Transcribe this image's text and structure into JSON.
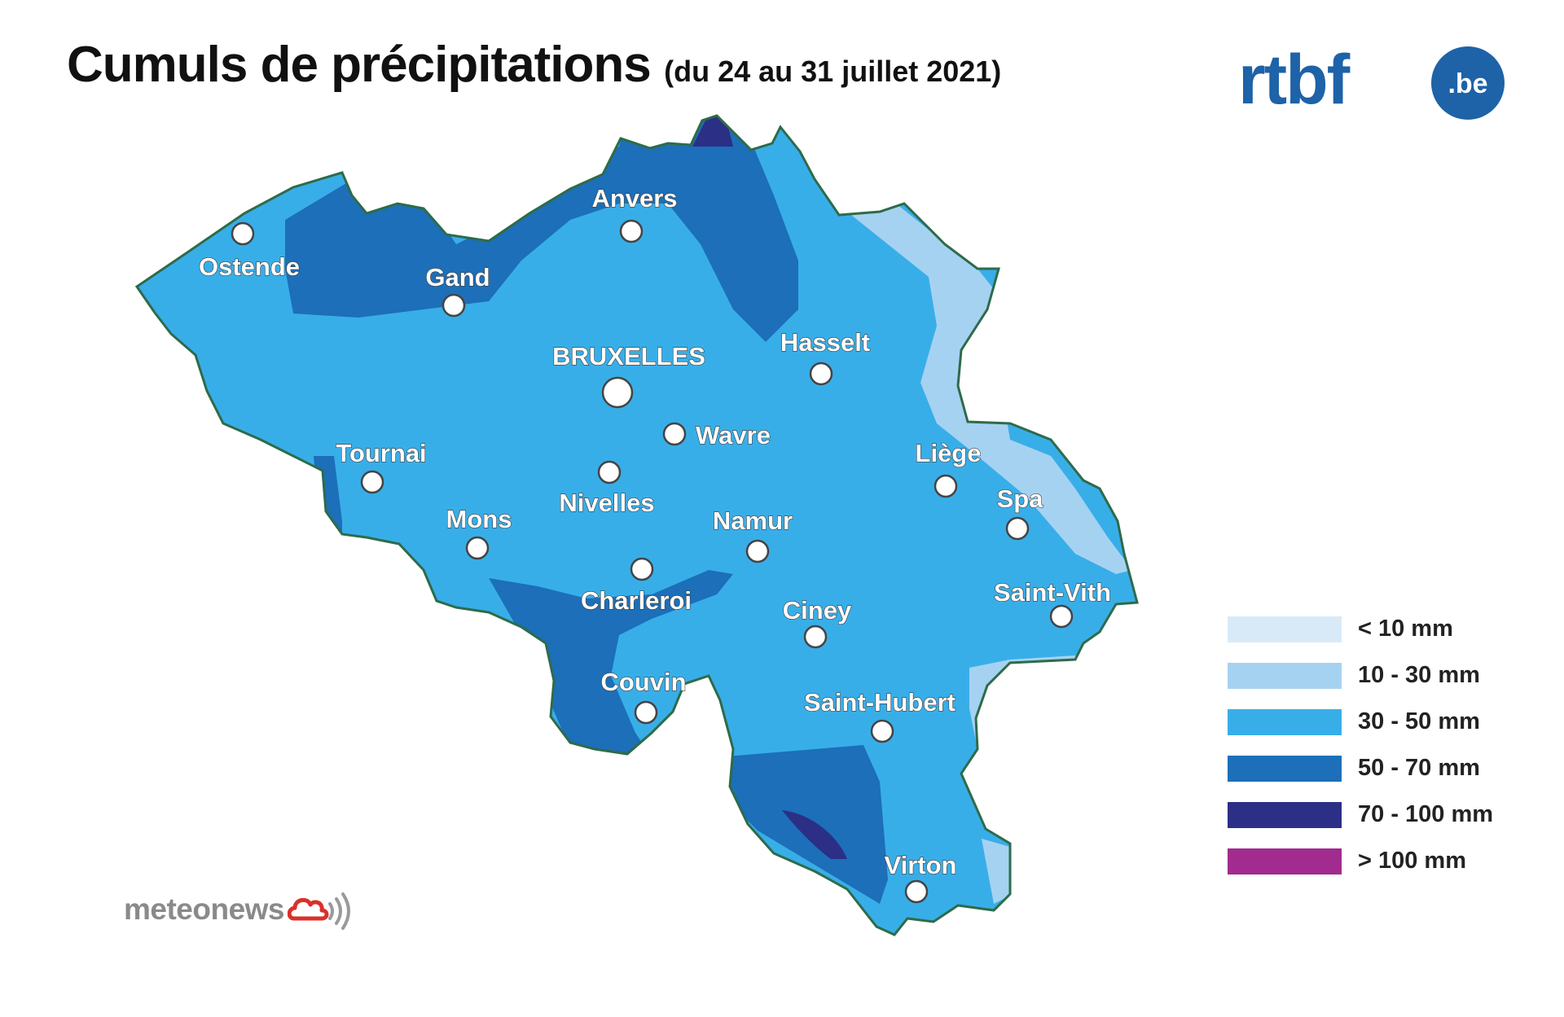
{
  "header": {
    "title": "Cumuls de précipitations",
    "subtitle": "(du 24 au 31 juillet 2021)"
  },
  "brand": {
    "logo_text": "rtbf",
    "logo_suffix": ".be",
    "logo_color": "#1e62a8"
  },
  "footer": {
    "brand_text": "meteonews",
    "icon": "cloud-signal-icon",
    "icon_color": "#d9312b"
  },
  "legend": {
    "items": [
      {
        "label": "< 10 mm",
        "color": "#d8eaf8"
      },
      {
        "label": "10 - 30 mm",
        "color": "#a6d2f2"
      },
      {
        "label": "30 - 50 mm",
        "color": "#38aee8"
      },
      {
        "label": "50 - 70 mm",
        "color": "#1c6fb8"
      },
      {
        "label": "70 - 100 mm",
        "color": "#2b2f86"
      },
      {
        "label": "> 100 mm",
        "color": "#a12b8f"
      }
    ]
  },
  "map": {
    "border_color": "#2e6b4a",
    "cities": [
      {
        "name": "Ostende"
      },
      {
        "name": "Gand"
      },
      {
        "name": "Anvers"
      },
      {
        "name": "BRUXELLES",
        "capital": true
      },
      {
        "name": "Hasselt"
      },
      {
        "name": "Wavre"
      },
      {
        "name": "Tournai"
      },
      {
        "name": "Nivelles"
      },
      {
        "name": "Mons"
      },
      {
        "name": "Namur"
      },
      {
        "name": "Liège"
      },
      {
        "name": "Spa"
      },
      {
        "name": "Charleroi"
      },
      {
        "name": "Ciney"
      },
      {
        "name": "Saint-Vith"
      },
      {
        "name": "Couvin"
      },
      {
        "name": "Saint-Hubert"
      },
      {
        "name": "Virton"
      }
    ]
  }
}
